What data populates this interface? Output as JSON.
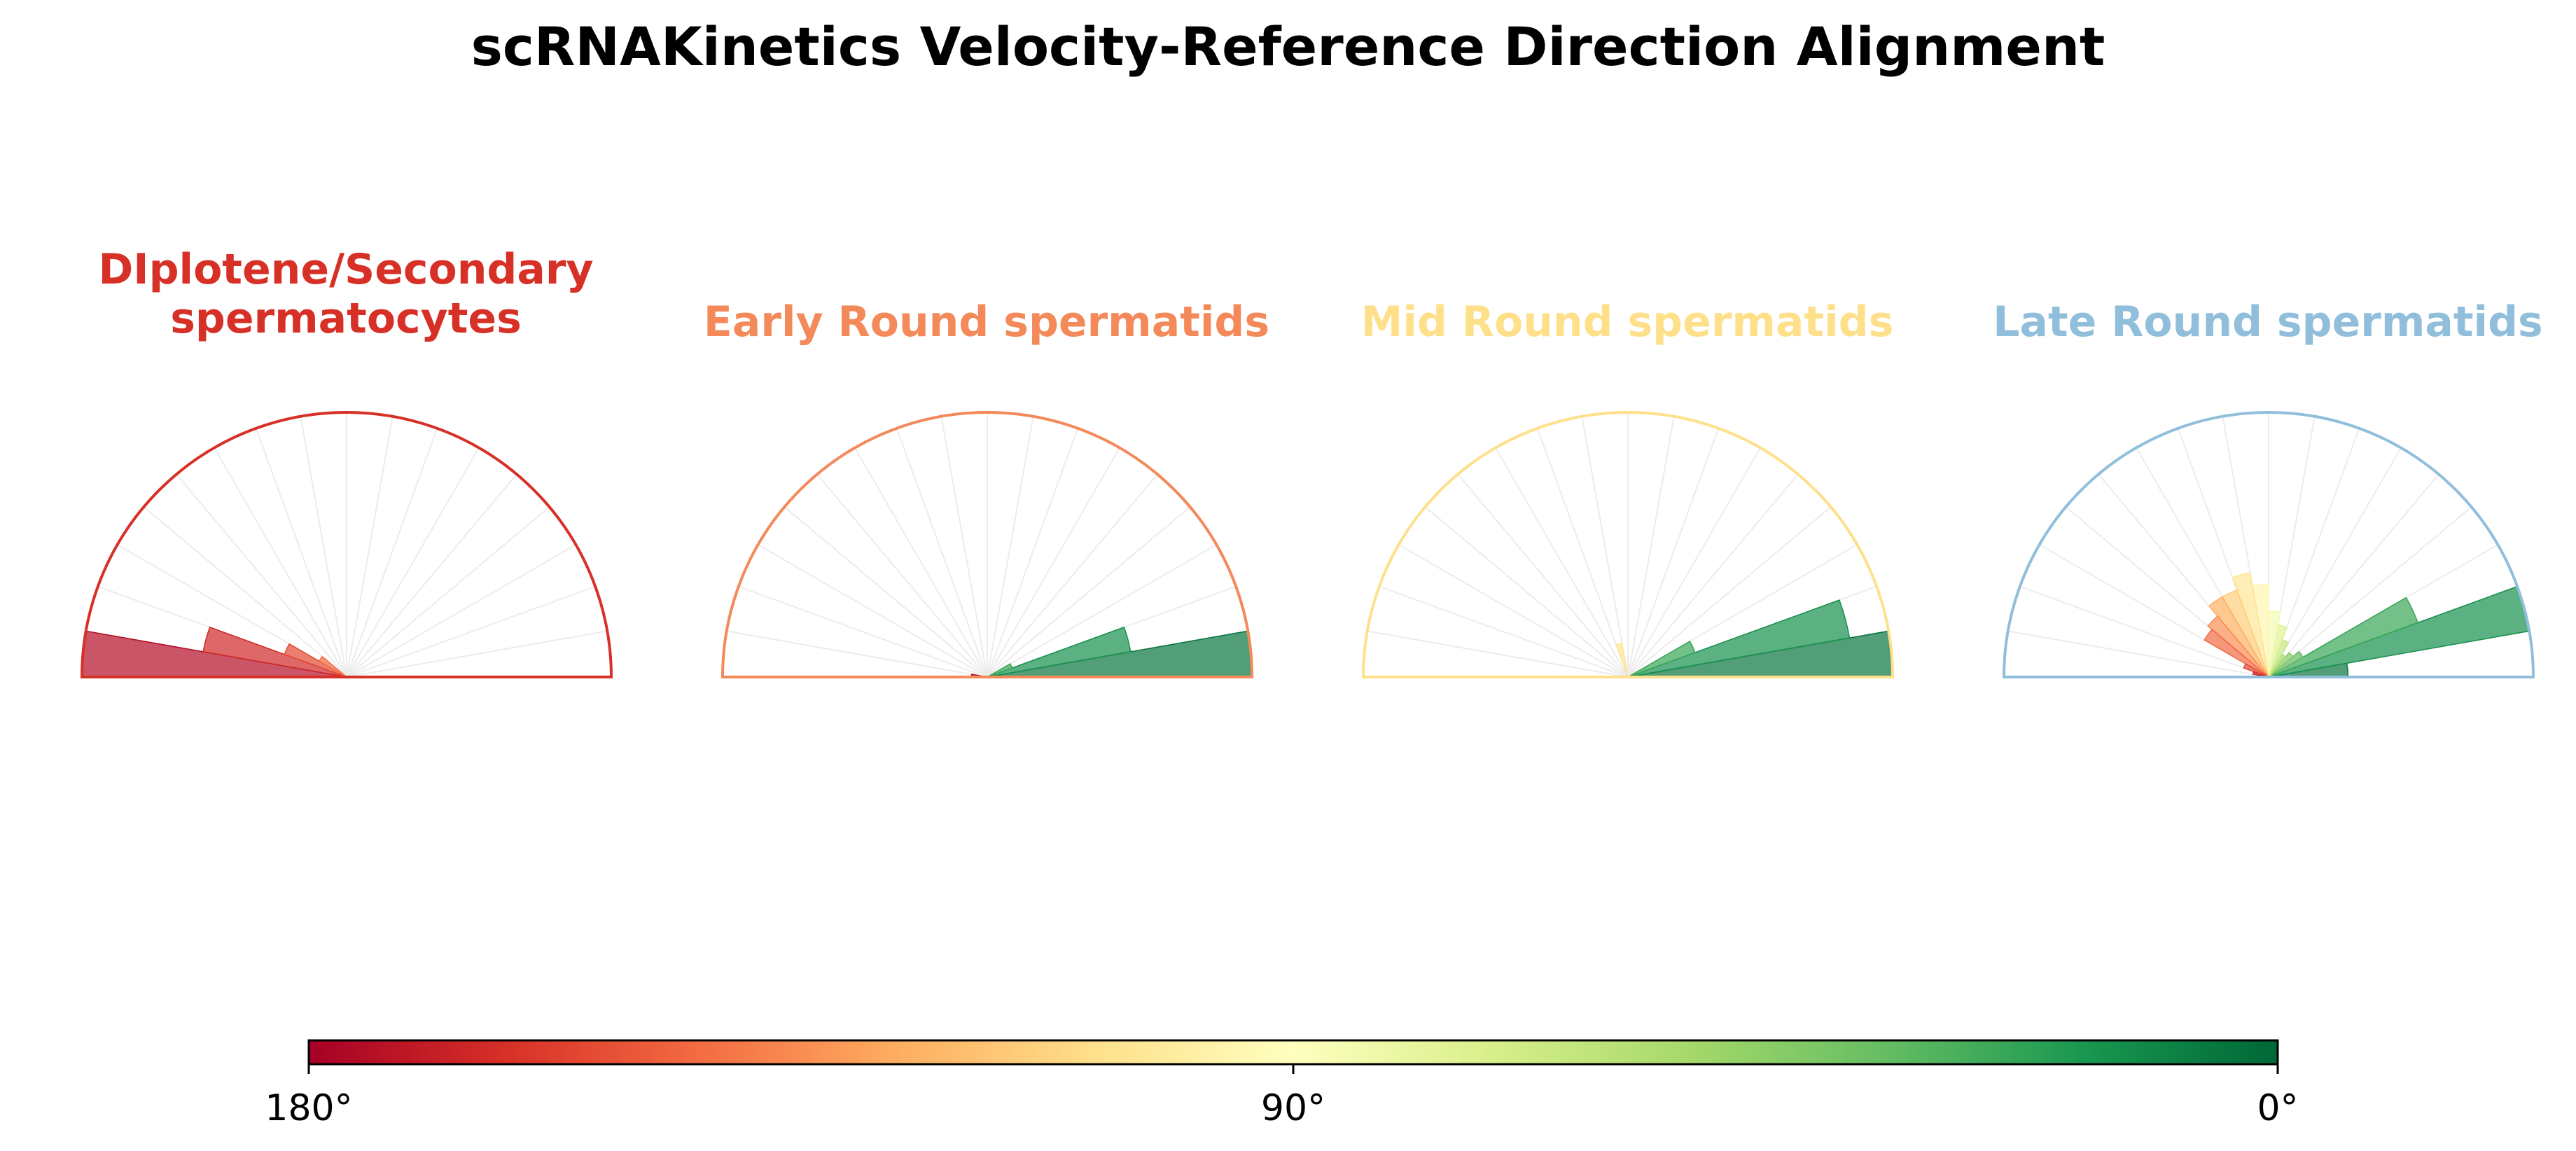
{
  "title": "scRNAKinetics Velocity-Reference Direction Alignment",
  "colorbar": {
    "ticks": [
      "180°",
      "90°",
      "0°"
    ],
    "colors": [
      "#a50026",
      "#d73027",
      "#f46d43",
      "#fdae61",
      "#fee08b",
      "#ffffbf",
      "#d9ef8b",
      "#a6d96a",
      "#66bd63",
      "#1a9850",
      "#006837"
    ]
  },
  "chart_data": [
    {
      "type": "polar-bar",
      "title_line1": "DIplotene/Secondary",
      "title_line2": "spermatocytes",
      "frame_color": "#d73027",
      "theta_range_deg": [
        0,
        180
      ],
      "bins_deg": [
        [
          180,
          170
        ],
        [
          170,
          160
        ],
        [
          160,
          150
        ],
        [
          150,
          140
        ]
      ],
      "values": [
        1.0,
        0.55,
        0.25,
        0.12
      ]
    },
    {
      "type": "polar-bar",
      "title_line1": "Early Round spermatids",
      "title_line2": "",
      "frame_color": "#f4895a",
      "theta_range_deg": [
        0,
        180
      ],
      "bins_deg": [
        [
          0,
          10
        ],
        [
          10,
          20
        ],
        [
          20,
          30
        ],
        [
          170,
          180
        ]
      ],
      "values": [
        1.0,
        0.55,
        0.1,
        0.06
      ]
    },
    {
      "type": "polar-bar",
      "title_line1": "Mid Round spermatids",
      "title_line2": "",
      "frame_color": "#fee08b",
      "theta_range_deg": [
        0,
        180
      ],
      "bins_deg": [
        [
          0,
          10
        ],
        [
          10,
          20
        ],
        [
          20,
          30
        ],
        [
          100,
          110
        ]
      ],
      "values": [
        1.0,
        0.85,
        0.27,
        0.13
      ]
    },
    {
      "type": "polar-bar",
      "title_line1": "Late Round spermatids",
      "title_line2": "",
      "frame_color": "#91bfdb",
      "theta_range_deg": [
        0,
        180
      ],
      "bins_deg": [
        [
          0,
          10
        ],
        [
          10,
          20
        ],
        [
          20,
          30
        ],
        [
          30,
          40
        ],
        [
          40,
          50
        ],
        [
          50,
          60
        ],
        [
          60,
          70
        ],
        [
          70,
          80
        ],
        [
          80,
          90
        ],
        [
          90,
          100
        ],
        [
          100,
          110
        ],
        [
          110,
          120
        ],
        [
          120,
          130
        ],
        [
          130,
          140
        ],
        [
          140,
          150
        ],
        [
          150,
          160
        ],
        [
          160,
          170
        ],
        [
          170,
          180
        ]
      ],
      "values": [
        0.3,
        1.0,
        0.6,
        0.15,
        0.12,
        0.1,
        0.15,
        0.2,
        0.25,
        0.35,
        0.4,
        0.35,
        0.35,
        0.3,
        0.28,
        0.1,
        0.06,
        0.04
      ]
    }
  ]
}
